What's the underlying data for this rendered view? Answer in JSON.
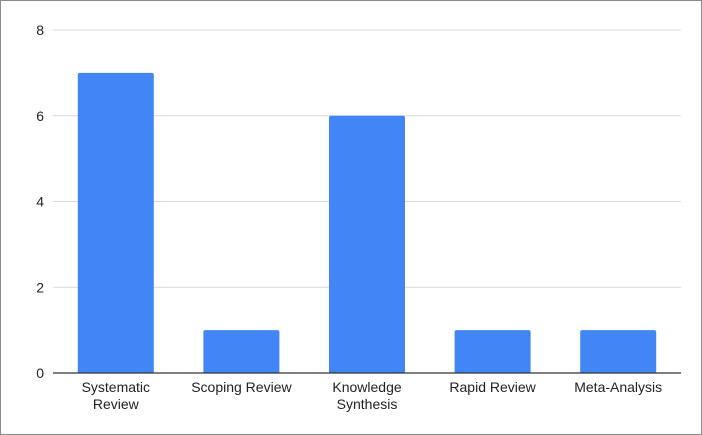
{
  "chart_data": {
    "type": "bar",
    "title": "",
    "xlabel": "",
    "ylabel": "",
    "categories": [
      [
        "Systematic",
        "Review"
      ],
      [
        "Scoping Review"
      ],
      [
        "Knowledge",
        "Synthesis"
      ],
      [
        "Rapid Review"
      ],
      [
        "Meta-Analysis"
      ]
    ],
    "values": [
      7,
      1,
      6,
      1,
      1
    ],
    "ylim": [
      0,
      8
    ],
    "yticks": [
      0,
      2,
      4,
      6,
      8
    ],
    "grid": true,
    "legend": "none",
    "bar_color": "#4285f4",
    "grid_color": "#d9d9d9",
    "axis_color": "#333333"
  }
}
